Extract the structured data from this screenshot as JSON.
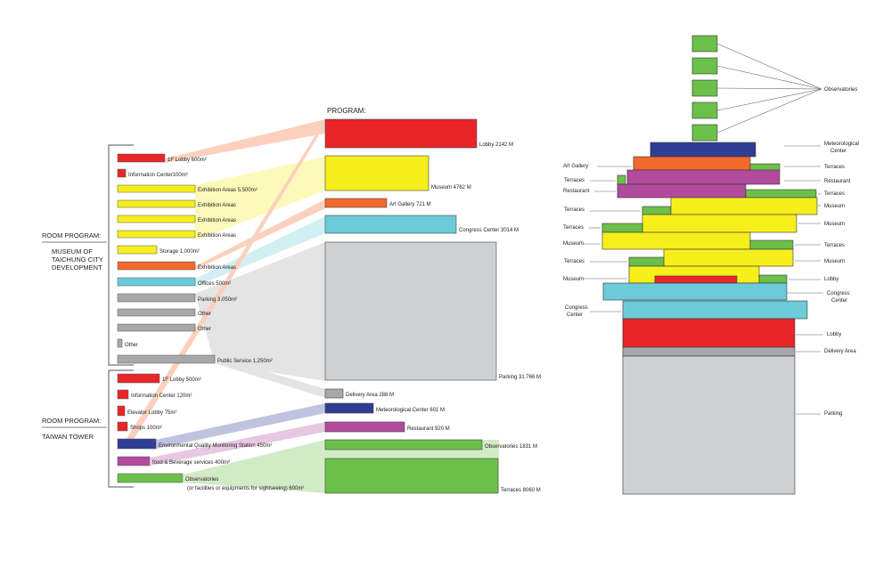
{
  "colors": {
    "red": "#e8262a",
    "yellow": "#f6ef1b",
    "orange": "#f26a2c",
    "cyan": "#6ccbd9",
    "gray": "#a7a8ab",
    "lightgray": "#cfd0d2",
    "blue": "#2f3d94",
    "magenta": "#b24a9e",
    "green": "#6cc04a"
  },
  "left": {
    "group1_title": "ROOM PROGRAM:",
    "group1_subtitle": [
      "MUSEUM OF",
      "TAICHUNG CITY",
      "DEVELOPMENT"
    ],
    "group1_items": [
      {
        "label": "1F Lobby 600m²",
        "color": "red"
      },
      {
        "label": "Information  Center100m²",
        "color": "red"
      },
      {
        "label": "Exhibition  Areas 5,500m²",
        "color": "yellow"
      },
      {
        "label": "Exhibition Areas",
        "color": "yellow"
      },
      {
        "label": "Exhibition Areas",
        "color": "yellow"
      },
      {
        "label": "Exhibition Areas",
        "color": "yellow"
      },
      {
        "label": "Storage 1,000m²",
        "color": "yellow"
      },
      {
        "label": "Exhibition Areas",
        "color": "orange"
      },
      {
        "label": "Offices 500m²",
        "color": "cyan"
      },
      {
        "label": "Parking 3,050m²",
        "color": "gray"
      },
      {
        "label": "Other",
        "color": "gray"
      },
      {
        "label": "Other",
        "color": "gray"
      },
      {
        "label": "Other",
        "color": "gray"
      },
      {
        "label": "Public Service 1,250m²",
        "color": "gray"
      }
    ],
    "group2_title": "ROOM PROGRAM:",
    "group2_subtitle": "TAIWAN TOWER",
    "group2_items": [
      {
        "label": "1F Lobby 500m²",
        "color": "red"
      },
      {
        "label": "Information Center 120m²",
        "color": "red"
      },
      {
        "label": "Elevator Lobby 75m²",
        "color": "red"
      },
      {
        "label": "Shops 100m²",
        "color": "red"
      },
      {
        "label": "Environmental Quality Monitoring Station  450m²",
        "color": "blue"
      },
      {
        "label": "food & Beverage services 400m²",
        "color": "magenta"
      },
      {
        "label": "Observatories",
        "color": "green"
      }
    ],
    "observatories_note": "(or facilities or equipments for sightseeing) 600m²"
  },
  "program": {
    "title": "PROGRAM:",
    "items": [
      {
        "label": "Lobby 2142 M",
        "color": "red"
      },
      {
        "label": "Museum  4762 M",
        "color": "yellow"
      },
      {
        "label": "Art Gallery   721 M",
        "color": "orange"
      },
      {
        "label": "Congress Center 3014 M",
        "color": "cyan"
      },
      {
        "label": "Parking 31 766 M",
        "color": "lightgray"
      },
      {
        "label": "Delivery Area 288 M",
        "color": "gray"
      },
      {
        "label": "Meteorological Center 601 M",
        "color": "blue"
      },
      {
        "label": "Restaurant  920 M",
        "color": "magenta"
      },
      {
        "label": "Observatories 1831 M",
        "color": "green"
      },
      {
        "label": "Terraces 8060 M",
        "color": "green"
      }
    ]
  },
  "tower": {
    "left_labels": [
      "Art Gallery",
      "Terraces",
      "Restaurant",
      "Terraces",
      "Terraces",
      "Museum",
      "Terraces",
      "Museum",
      "Congress Center"
    ],
    "right_labels": [
      "Observatories",
      "Meteorological Center",
      "Terraces",
      "Restaurant",
      "Terraces",
      "Museum",
      "Museum",
      "Terraces",
      "Museum",
      "Lobby",
      "Congress Center",
      "Lobby",
      "Delivery Area",
      "Parking"
    ]
  }
}
